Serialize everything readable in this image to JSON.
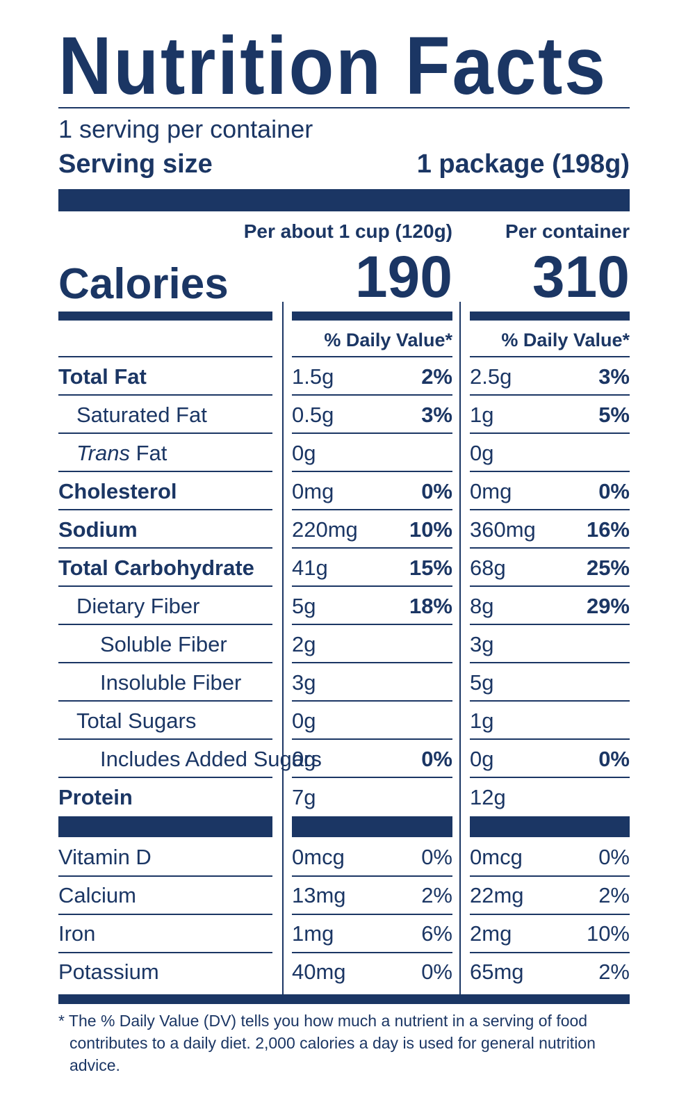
{
  "title": "Nutrition Facts",
  "servings_per_container": "1 serving per container",
  "serving_size_label": "Serving size",
  "serving_size_value": "1 package (198g)",
  "columns": {
    "col1_header": "Per about 1 cup (120g)",
    "col2_header": "Per container",
    "dv_header": "% Daily Value*"
  },
  "calories": {
    "label": "Calories",
    "col1": "190",
    "col2": "310"
  },
  "nutrients": [
    {
      "name": "Total Fat",
      "amt1": "1.5g",
      "dv1": "2%",
      "amt2": "2.5g",
      "dv2": "3%"
    },
    {
      "name": "Saturated Fat",
      "amt1": "0.5g",
      "dv1": "3%",
      "amt2": "1g",
      "dv2": "5%"
    },
    {
      "name_italic": "Trans",
      "name_rest": " Fat",
      "amt1": "0g",
      "dv1": "",
      "amt2": "0g",
      "dv2": ""
    },
    {
      "name": "Cholesterol",
      "amt1": "0mg",
      "dv1": "0%",
      "amt2": "0mg",
      "dv2": "0%"
    },
    {
      "name": "Sodium",
      "amt1": "220mg",
      "dv1": "10%",
      "amt2": "360mg",
      "dv2": "16%"
    },
    {
      "name": "Total Carbohydrate",
      "amt1": "41g",
      "dv1": "15%",
      "amt2": "68g",
      "dv2": "25%"
    },
    {
      "name": "Dietary Fiber",
      "amt1": "5g",
      "dv1": "18%",
      "amt2": "8g",
      "dv2": "29%"
    },
    {
      "name": "Soluble Fiber",
      "amt1": "2g",
      "dv1": "",
      "amt2": "3g",
      "dv2": ""
    },
    {
      "name": "Insoluble Fiber",
      "amt1": "3g",
      "dv1": "",
      "amt2": "5g",
      "dv2": ""
    },
    {
      "name": "Total Sugars",
      "amt1": "0g",
      "dv1": "",
      "amt2": "1g",
      "dv2": ""
    },
    {
      "name": "Includes Added Sugars",
      "amt1": "0g",
      "dv1": "0%",
      "amt2": "0g",
      "dv2": "0%"
    },
    {
      "name": "Protein",
      "amt1": "7g",
      "dv1": "",
      "amt2": "12g",
      "dv2": ""
    }
  ],
  "vitamins": [
    {
      "name": "Vitamin D",
      "amt1": "0mcg",
      "dv1": "0%",
      "amt2": "0mcg",
      "dv2": "0%"
    },
    {
      "name": "Calcium",
      "amt1": "13mg",
      "dv1": "2%",
      "amt2": "22mg",
      "dv2": "2%"
    },
    {
      "name": "Iron",
      "amt1": "1mg",
      "dv1": "6%",
      "amt2": "2mg",
      "dv2": "10%"
    },
    {
      "name": "Potassium",
      "amt1": "40mg",
      "dv1": "0%",
      "amt2": "65mg",
      "dv2": "2%"
    }
  ],
  "footnote": {
    "line1": "* The % Daily Value (DV) tells you how much a nutrient in a serving of food",
    "line2": "contributes to a daily diet. 2,000 calories a day is used for general nutrition advice."
  },
  "colors": {
    "ink": "#1b3664",
    "background": "#ffffff"
  }
}
